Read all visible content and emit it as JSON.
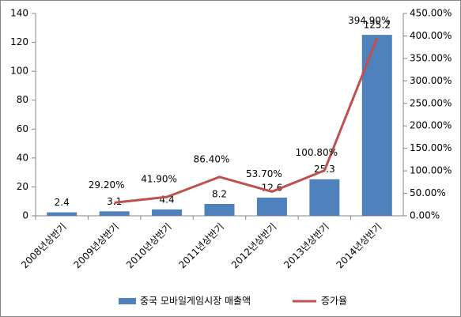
{
  "chart_data": {
    "type": "bar",
    "categories": [
      "2008년상반기",
      "2009년상반기",
      "2010년상반기",
      "2011년상반기",
      "2012년상반기",
      "2013년상반기",
      "2014년상반기"
    ],
    "series": [
      {
        "name": "중국 모바일게임시장 매출액",
        "type": "bar",
        "color": "#4f81bd",
        "values": [
          2.4,
          3.1,
          4.4,
          8.2,
          12.6,
          25.3,
          125.2
        ]
      },
      {
        "name": "증가율",
        "type": "line",
        "axis": "y2",
        "color": "#c0504d",
        "values": [
          null,
          29.2,
          41.9,
          86.4,
          53.7,
          100.8,
          394.9
        ],
        "value_labels": [
          null,
          "29.20%",
          "41.90%",
          "86.40%",
          "53.70%",
          "100.80%",
          "394.90%"
        ]
      }
    ],
    "ylim": [
      0,
      140
    ],
    "yticks": [
      0,
      20,
      40,
      60,
      80,
      100,
      120,
      140
    ],
    "y2lim": [
      0,
      450
    ],
    "y2ticks": [
      {
        "value": 0,
        "label": "0.00%"
      },
      {
        "value": 50,
        "label": "50.00%"
      },
      {
        "value": 100,
        "label": "100.00%"
      },
      {
        "value": 150,
        "label": "150.00%"
      },
      {
        "value": 200,
        "label": "200.00%"
      },
      {
        "value": 250,
        "label": "250.00%"
      },
      {
        "value": 300,
        "label": "300.00%"
      },
      {
        "value": 350,
        "label": "350.00%"
      },
      {
        "value": 400,
        "label": "400.00%"
      },
      {
        "value": 450,
        "label": "450.00%"
      }
    ],
    "grid": false,
    "legend": "bottom"
  }
}
